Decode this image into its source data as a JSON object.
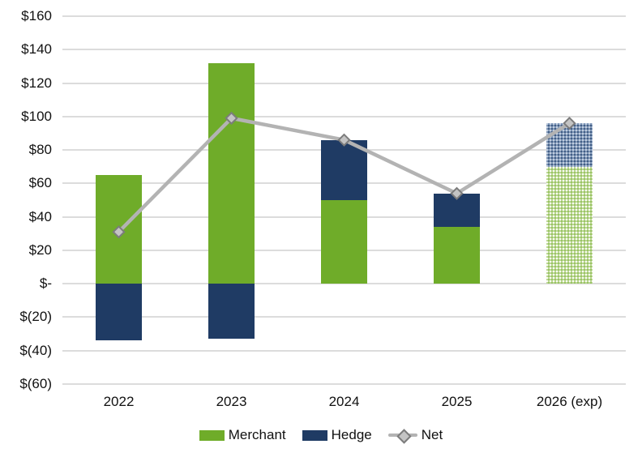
{
  "chart_data": {
    "type": "bar",
    "subtype": "stacked-bar-with-line-overlay",
    "title": "",
    "xlabel": "",
    "ylabel": "",
    "categories": [
      "2022",
      "2023",
      "2024",
      "2025",
      "2026 (exp)"
    ],
    "series": [
      {
        "name": "Merchant",
        "type": "bar",
        "color": "#6FAC29",
        "values": [
          65,
          132,
          50,
          34,
          70
        ]
      },
      {
        "name": "Hedge",
        "type": "bar",
        "color": "#1F3B64",
        "values": [
          -34,
          -33,
          36,
          20,
          26
        ]
      },
      {
        "name": "Net",
        "type": "line",
        "color": "#B3B3B3",
        "values": [
          31,
          99,
          86,
          54,
          96
        ]
      }
    ],
    "forecast_category_index": 4,
    "ylim": [
      -60,
      160
    ],
    "ytick_step": 20,
    "ytick_labels": [
      "$160",
      "$140",
      "$120",
      "$100",
      "$80",
      "$60",
      "$40",
      "$20",
      "$-",
      "$(20)",
      "$(40)",
      "$(60)"
    ],
    "grid": "horizontal",
    "legend_position": "bottom",
    "colors": {
      "gridline": "#dcdcdc",
      "net_line": "#B3B3B3",
      "marker_fill": "#C4C4C4",
      "marker_border": "#7C7C7C",
      "forecast_merchant": "#BCD793",
      "forecast_hedge": "#7F97B9"
    }
  },
  "legend": {
    "merchant_label": "Merchant",
    "hedge_label": "Hedge",
    "net_label": "Net"
  }
}
